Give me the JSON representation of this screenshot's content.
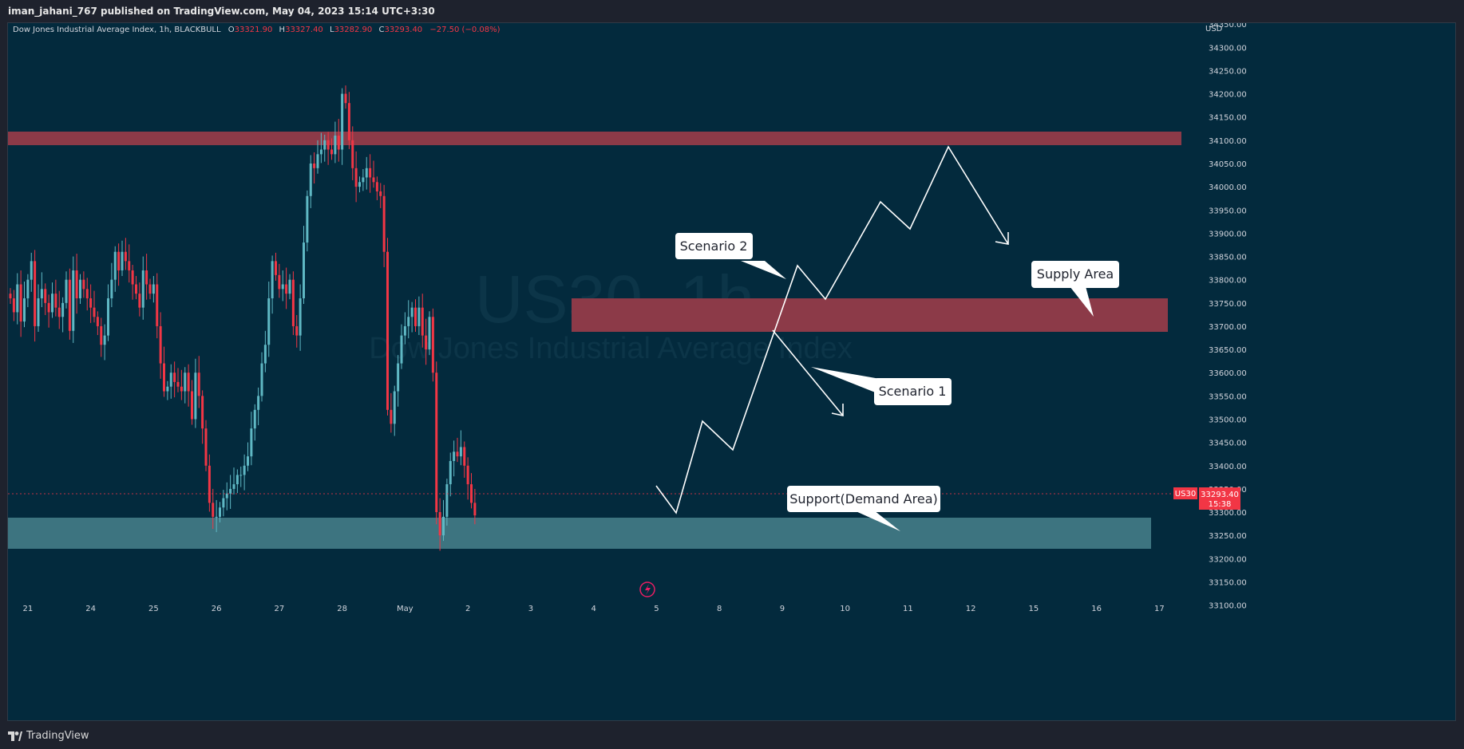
{
  "header": {
    "publish_line": "iman_jahani_767 published on TradingView.com, May 04, 2023 15:14 UTC+3:30"
  },
  "legend": {
    "symbol_desc": "Dow Jones Industrial Average Index, 1h, BLACKBULL",
    "o_label": "O",
    "o_value": "33321.90",
    "h_label": "H",
    "h_value": "33327.40",
    "l_label": "L",
    "l_value": "33282.90",
    "c_label": "C",
    "c_value": "33293.40",
    "change": "−27.50 (−0.08%)"
  },
  "watermark": {
    "symbol": "US30, 1h",
    "name": "Dow Jones Industrial Average Index"
  },
  "price_scale": {
    "currency": "USD"
  },
  "last_price": {
    "symbol": "US30",
    "price": "33293.40",
    "countdown": "15:38"
  },
  "annotations": {
    "scenario2": "Scenario 2",
    "scenario1": "Scenario 1",
    "supply": "Supply Area",
    "support": "Support(Demand Area)"
  },
  "footer": {
    "brand": "TradingView"
  },
  "colors": {
    "background": "#032a3d",
    "up": "#5fb8c4",
    "down": "#f23645",
    "supply_zone": "#8c3a48",
    "demand_zone": "#3d7480",
    "label_bg": "#ffffff",
    "label_text": "#1e222d",
    "accent": "#e91e63"
  },
  "chart_data": {
    "type": "candlestick",
    "title": "Dow Jones Industrial Average Index, 1h, BLACKBULL",
    "currency": "USD",
    "y_ticks": [
      33100,
      33150,
      33200,
      33250,
      33300,
      33350,
      33400,
      33450,
      33500,
      33550,
      33600,
      33650,
      33700,
      33750,
      33800,
      33850,
      33900,
      33950,
      34000,
      34050,
      34100,
      34150,
      34200,
      34250,
      34300,
      34350
    ],
    "ylim": [
      33065,
      34352
    ],
    "x_ticks": [
      {
        "label": "21",
        "i": 5
      },
      {
        "label": "24",
        "i": 23
      },
      {
        "label": "25",
        "i": 41
      },
      {
        "label": "26",
        "i": 59
      },
      {
        "label": "27",
        "i": 77
      },
      {
        "label": "28",
        "i": 95
      },
      {
        "label": "May",
        "i": 113
      },
      {
        "label": "2",
        "i": 131
      },
      {
        "label": "3",
        "i": 149
      },
      {
        "label": "4",
        "i": 167
      },
      {
        "label": "5",
        "i": 185
      },
      {
        "label": "8",
        "i": 203
      },
      {
        "label": "9",
        "i": 221
      },
      {
        "label": "10",
        "i": 239
      },
      {
        "label": "11",
        "i": 257
      },
      {
        "label": "12",
        "i": 275
      },
      {
        "label": "15",
        "i": 293
      },
      {
        "label": "16",
        "i": 311
      },
      {
        "label": "17",
        "i": 329
      }
    ],
    "closes": [
      33760,
      33730,
      33790,
      33710,
      33760,
      33800,
      33840,
      33700,
      33760,
      33780,
      33750,
      33730,
      33770,
      33740,
      33720,
      33750,
      33800,
      33690,
      33820,
      33760,
      33800,
      33780,
      33760,
      33740,
      33720,
      33700,
      33660,
      33680,
      33760,
      33800,
      33860,
      33820,
      33860,
      33840,
      33820,
      33790,
      33770,
      33740,
      33820,
      33790,
      33770,
      33790,
      33700,
      33620,
      33560,
      33570,
      33600,
      33580,
      33570,
      33560,
      33600,
      33560,
      33500,
      33600,
      33550,
      33480,
      33400,
      33320,
      33290,
      33290,
      33310,
      33330,
      33340,
      33350,
      33360,
      33380,
      33380,
      33400,
      33420,
      33480,
      33520,
      33550,
      33620,
      33660,
      33760,
      33840,
      33810,
      33780,
      33790,
      33770,
      33800,
      33700,
      33680,
      33760,
      33880,
      33980,
      34050,
      34040,
      34070,
      34080,
      34100,
      34080,
      34070,
      34110,
      34080,
      34200,
      34180,
      34100,
      34040,
      34000,
      34010,
      34020,
      34040,
      34020,
      34010,
      33990,
      33980,
      33860,
      33520,
      33490,
      33560,
      33620,
      33680,
      33700,
      33720,
      33740,
      33700,
      33740,
      33680,
      33650,
      33720,
      33600,
      33300,
      33250,
      33290,
      33360,
      33410,
      33430,
      33420,
      33440,
      33400,
      33360,
      33320,
      33293
    ],
    "supply_zone_upper": [
      34099,
      34131
    ],
    "supply_zone_middle": [
      33669,
      33746
    ],
    "demand_zone": [
      33162,
      33234
    ],
    "last_price": 33293.4
  }
}
